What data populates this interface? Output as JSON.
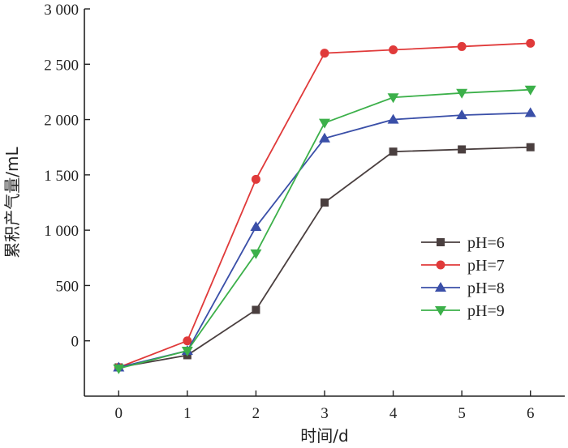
{
  "chart_data": {
    "type": "line",
    "xlabel": "时间/d",
    "ylabel": "累积产气量/mL",
    "x": [
      0,
      1,
      2,
      3,
      4,
      5,
      6
    ],
    "xlim": [
      -0.5,
      6.5
    ],
    "ylim": [
      -500,
      3000
    ],
    "x_ticks": [
      0,
      1,
      2,
      3,
      4,
      5,
      6
    ],
    "x_tick_labels": [
      "0",
      "1",
      "2",
      "3",
      "4",
      "5",
      "6"
    ],
    "y_ticks": [
      0,
      500,
      1000,
      1500,
      2000,
      2500,
      3000
    ],
    "y_tick_labels": [
      "0",
      "500",
      "1 000",
      "1 500",
      "2 000",
      "2 500",
      "3 000"
    ],
    "legend_position": "right-middle",
    "grid": false,
    "series": [
      {
        "name": "pH=6",
        "color": "#4a3f3f",
        "marker": "square",
        "values": [
          -240,
          -130,
          280,
          1250,
          1710,
          1730,
          1750
        ]
      },
      {
        "name": "pH=7",
        "color": "#e03a3a",
        "marker": "circle",
        "values": [
          -240,
          0,
          1460,
          2600,
          2630,
          2660,
          2690
        ]
      },
      {
        "name": "pH=8",
        "color": "#3a4fa8",
        "marker": "triangle-up",
        "values": [
          -240,
          -90,
          1030,
          1830,
          2000,
          2040,
          2060
        ]
      },
      {
        "name": "pH=9",
        "color": "#3cb04a",
        "marker": "triangle-down",
        "values": [
          -250,
          -90,
          790,
          1970,
          2200,
          2240,
          2270
        ]
      }
    ]
  }
}
